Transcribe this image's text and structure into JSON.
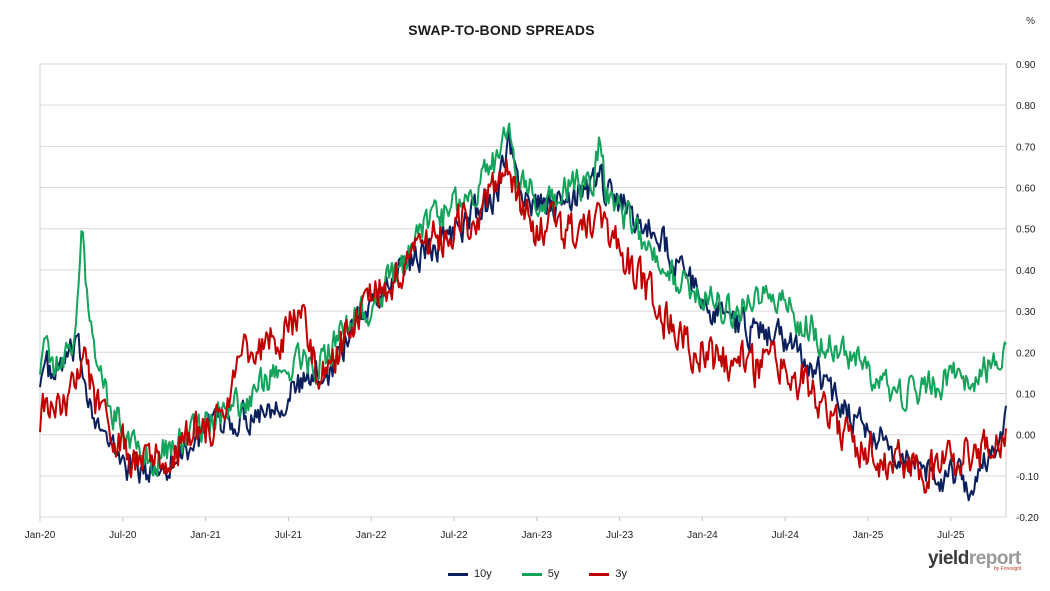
{
  "chart_data": {
    "type": "line",
    "title": "SWAP-TO-BOND SPREADS",
    "unit": "%",
    "xlabel": "",
    "ylabel": "",
    "x_ticks": [
      "Jan-20",
      "Jul-20",
      "Jan-21",
      "Jul-21",
      "Jan-22",
      "Jul-22",
      "Jan-23",
      "Jul-23",
      "Jan-24",
      "Jul-24",
      "Jan-25",
      "Jul-25"
    ],
    "ylim": [
      -0.2,
      0.9
    ],
    "y_ticks": [
      "0.90",
      "0.80",
      "0.70",
      "0.60",
      "0.50",
      "0.40",
      "0.30",
      "0.20",
      "0.10",
      "0.00",
      "-0.10",
      "-0.20"
    ],
    "y_tick_values": [
      0.9,
      0.8,
      0.7,
      0.6,
      0.5,
      0.4,
      0.3,
      0.2,
      0.1,
      0.0,
      -0.1,
      -0.2
    ],
    "grid": "horizontal",
    "legend_position": "bottom",
    "x_range_months": [
      0,
      70
    ],
    "series": [
      {
        "name": "10y",
        "color": "#0b1f5c",
        "points": [
          [
            0,
            0.15
          ],
          [
            0.5,
            0.16
          ],
          [
            1,
            0.13
          ],
          [
            1.5,
            0.17
          ],
          [
            2,
            0.18
          ],
          [
            2.5,
            0.2
          ],
          [
            3,
            0.18
          ],
          [
            3.5,
            0.1
          ],
          [
            4,
            0.06
          ],
          [
            4.5,
            0.0
          ],
          [
            5,
            -0.03
          ],
          [
            5.5,
            -0.05
          ],
          [
            6,
            -0.06
          ],
          [
            6.5,
            -0.08
          ],
          [
            7,
            -0.07
          ],
          [
            7.5,
            -0.1
          ],
          [
            8,
            -0.09
          ],
          [
            8.5,
            -0.08
          ],
          [
            9,
            -0.07
          ],
          [
            10,
            -0.05
          ],
          [
            11,
            -0.02
          ],
          [
            12,
            0.0
          ],
          [
            13,
            0.02
          ],
          [
            14,
            0.03
          ],
          [
            15,
            0.05
          ],
          [
            16,
            0.06
          ],
          [
            17,
            0.08
          ],
          [
            18,
            0.1
          ],
          [
            19,
            0.12
          ],
          [
            20,
            0.14
          ],
          [
            21,
            0.16
          ],
          [
            22,
            0.22
          ],
          [
            23,
            0.28
          ],
          [
            24,
            0.32
          ],
          [
            25,
            0.35
          ],
          [
            26,
            0.4
          ],
          [
            27,
            0.43
          ],
          [
            28,
            0.45
          ],
          [
            29,
            0.47
          ],
          [
            30,
            0.5
          ],
          [
            31,
            0.52
          ],
          [
            32,
            0.55
          ],
          [
            33,
            0.58
          ],
          [
            34,
            0.7
          ],
          [
            34.5,
            0.62
          ],
          [
            35,
            0.58
          ],
          [
            36,
            0.55
          ],
          [
            37,
            0.56
          ],
          [
            38,
            0.55
          ],
          [
            39,
            0.58
          ],
          [
            40,
            0.6
          ],
          [
            40.5,
            0.64
          ],
          [
            41,
            0.58
          ],
          [
            42,
            0.57
          ],
          [
            43,
            0.52
          ],
          [
            44,
            0.5
          ],
          [
            45,
            0.48
          ],
          [
            46,
            0.42
          ],
          [
            47,
            0.37
          ],
          [
            48,
            0.33
          ],
          [
            49,
            0.3
          ],
          [
            50,
            0.28
          ],
          [
            51,
            0.26
          ],
          [
            52,
            0.25
          ],
          [
            53,
            0.24
          ],
          [
            54,
            0.23
          ],
          [
            55,
            0.2
          ],
          [
            56,
            0.17
          ],
          [
            57,
            0.12
          ],
          [
            58,
            0.08
          ],
          [
            59,
            0.05
          ],
          [
            60,
            0.02
          ],
          [
            61,
            -0.02
          ],
          [
            62,
            -0.05
          ],
          [
            63,
            -0.07
          ],
          [
            64,
            -0.08
          ],
          [
            65,
            -0.1
          ],
          [
            66,
            -0.1
          ],
          [
            67,
            -0.12
          ],
          [
            68,
            -0.1
          ],
          [
            69,
            -0.05
          ],
          [
            70,
            0.05
          ]
        ]
      },
      {
        "name": "5y",
        "color": "#13a35b",
        "points": [
          [
            0,
            0.18
          ],
          [
            0.5,
            0.2
          ],
          [
            1,
            0.17
          ],
          [
            1.5,
            0.16
          ],
          [
            2,
            0.18
          ],
          [
            2.5,
            0.25
          ],
          [
            3,
            0.52
          ],
          [
            3.5,
            0.3
          ],
          [
            4,
            0.22
          ],
          [
            4.5,
            0.15
          ],
          [
            5,
            0.08
          ],
          [
            5.5,
            0.04
          ],
          [
            6,
            0.02
          ],
          [
            6.5,
            0.0
          ],
          [
            7,
            -0.02
          ],
          [
            7.5,
            -0.05
          ],
          [
            8,
            -0.06
          ],
          [
            8.5,
            -0.05
          ],
          [
            9,
            -0.04
          ],
          [
            10,
            -0.02
          ],
          [
            11,
            0.0
          ],
          [
            12,
            0.02
          ],
          [
            13,
            0.04
          ],
          [
            14,
            0.06
          ],
          [
            15,
            0.08
          ],
          [
            16,
            0.12
          ],
          [
            17,
            0.14
          ],
          [
            18,
            0.16
          ],
          [
            19,
            0.18
          ],
          [
            20,
            0.17
          ],
          [
            21,
            0.2
          ],
          [
            22,
            0.25
          ],
          [
            23,
            0.29
          ],
          [
            24,
            0.31
          ],
          [
            25,
            0.36
          ],
          [
            26,
            0.4
          ],
          [
            27,
            0.45
          ],
          [
            28,
            0.5
          ],
          [
            29,
            0.53
          ],
          [
            30,
            0.55
          ],
          [
            31,
            0.58
          ],
          [
            32,
            0.62
          ],
          [
            33,
            0.66
          ],
          [
            34,
            0.76
          ],
          [
            34.5,
            0.63
          ],
          [
            35,
            0.6
          ],
          [
            36,
            0.58
          ],
          [
            37,
            0.56
          ],
          [
            38,
            0.6
          ],
          [
            39,
            0.62
          ],
          [
            40,
            0.58
          ],
          [
            40.5,
            0.7
          ],
          [
            41,
            0.6
          ],
          [
            42,
            0.55
          ],
          [
            43,
            0.5
          ],
          [
            44,
            0.45
          ],
          [
            45,
            0.4
          ],
          [
            46,
            0.38
          ],
          [
            47,
            0.36
          ],
          [
            48,
            0.33
          ],
          [
            49,
            0.32
          ],
          [
            50,
            0.3
          ],
          [
            51,
            0.31
          ],
          [
            52,
            0.33
          ],
          [
            53,
            0.35
          ],
          [
            54,
            0.32
          ],
          [
            55,
            0.28
          ],
          [
            56,
            0.26
          ],
          [
            57,
            0.22
          ],
          [
            58,
            0.2
          ],
          [
            59,
            0.18
          ],
          [
            60,
            0.15
          ],
          [
            61,
            0.12
          ],
          [
            62,
            0.1
          ],
          [
            63,
            0.1
          ],
          [
            64,
            0.12
          ],
          [
            65,
            0.12
          ],
          [
            66,
            0.14
          ],
          [
            67,
            0.14
          ],
          [
            68,
            0.15
          ],
          [
            69,
            0.17
          ],
          [
            70,
            0.18
          ]
        ]
      },
      {
        "name": "3y",
        "color": "#c00000",
        "points": [
          [
            0,
            0.05
          ],
          [
            0.5,
            0.06
          ],
          [
            1,
            0.04
          ],
          [
            1.5,
            0.05
          ],
          [
            2,
            0.08
          ],
          [
            2.5,
            0.15
          ],
          [
            3,
            0.2
          ],
          [
            3.5,
            0.15
          ],
          [
            4,
            0.08
          ],
          [
            4.5,
            0.03
          ],
          [
            5,
            0.0
          ],
          [
            5.5,
            -0.02
          ],
          [
            6,
            -0.03
          ],
          [
            6.5,
            -0.05
          ],
          [
            7,
            -0.06
          ],
          [
            7.5,
            -0.08
          ],
          [
            8,
            -0.07
          ],
          [
            8.5,
            -0.06
          ],
          [
            9,
            -0.05
          ],
          [
            10,
            -0.03
          ],
          [
            11,
            -0.01
          ],
          [
            12,
            0.02
          ],
          [
            13,
            0.05
          ],
          [
            14,
            0.1
          ],
          [
            15,
            0.2
          ],
          [
            16,
            0.22
          ],
          [
            17,
            0.24
          ],
          [
            18,
            0.26
          ],
          [
            19,
            0.28
          ],
          [
            20,
            0.15
          ],
          [
            21,
            0.16
          ],
          [
            22,
            0.24
          ],
          [
            23,
            0.3
          ],
          [
            24,
            0.33
          ],
          [
            25,
            0.36
          ],
          [
            26,
            0.4
          ],
          [
            27,
            0.43
          ],
          [
            28,
            0.46
          ],
          [
            29,
            0.48
          ],
          [
            30,
            0.5
          ],
          [
            31,
            0.52
          ],
          [
            32,
            0.55
          ],
          [
            33,
            0.6
          ],
          [
            34,
            0.68
          ],
          [
            34.5,
            0.58
          ],
          [
            35,
            0.55
          ],
          [
            36,
            0.48
          ],
          [
            37,
            0.5
          ],
          [
            38,
            0.48
          ],
          [
            39,
            0.5
          ],
          [
            40,
            0.52
          ],
          [
            40.5,
            0.56
          ],
          [
            41,
            0.48
          ],
          [
            42,
            0.45
          ],
          [
            43,
            0.4
          ],
          [
            44,
            0.35
          ],
          [
            45,
            0.3
          ],
          [
            46,
            0.25
          ],
          [
            47,
            0.22
          ],
          [
            48,
            0.2
          ],
          [
            49,
            0.18
          ],
          [
            50,
            0.17
          ],
          [
            51,
            0.17
          ],
          [
            52,
            0.16
          ],
          [
            53,
            0.17
          ],
          [
            54,
            0.16
          ],
          [
            55,
            0.14
          ],
          [
            56,
            0.1
          ],
          [
            57,
            0.06
          ],
          [
            58,
            0.02
          ],
          [
            59,
            -0.01
          ],
          [
            60,
            -0.03
          ],
          [
            61,
            -0.06
          ],
          [
            62,
            -0.07
          ],
          [
            63,
            -0.08
          ],
          [
            64,
            -0.08
          ],
          [
            65,
            -0.09
          ],
          [
            66,
            -0.07
          ],
          [
            67,
            -0.05
          ],
          [
            68,
            -0.04
          ],
          [
            69,
            -0.03
          ],
          [
            70,
            0.0
          ]
        ]
      }
    ]
  },
  "logo": {
    "part1": "yield",
    "part2": "report",
    "tagline": "by Foresight"
  }
}
